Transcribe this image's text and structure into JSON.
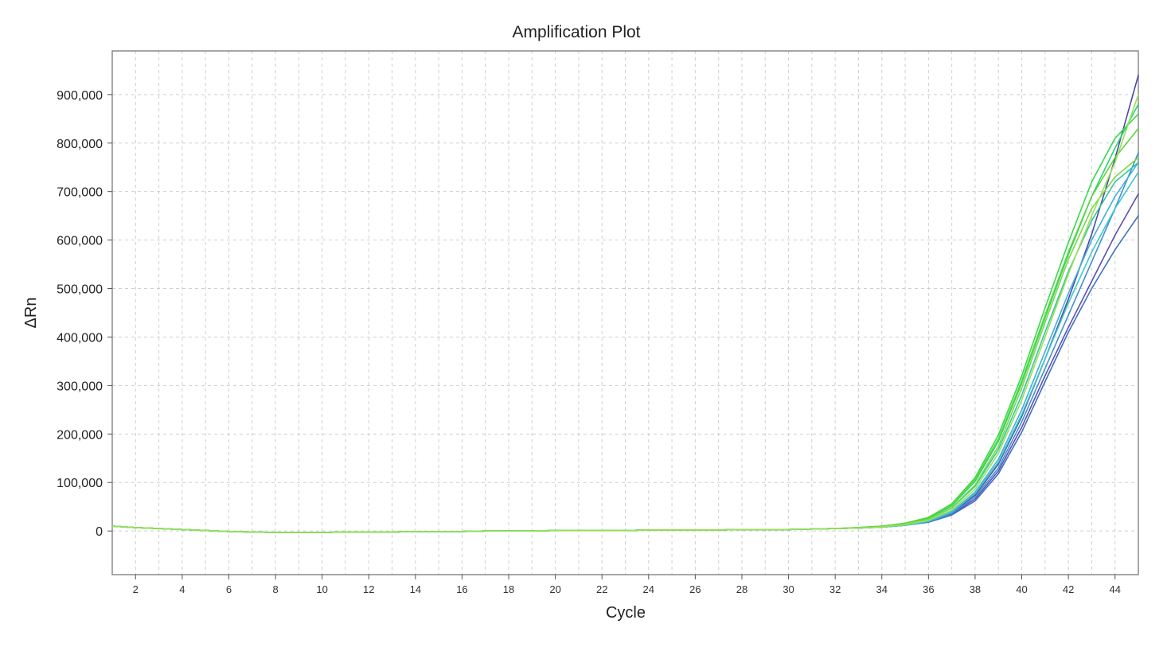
{
  "chart_data": {
    "type": "line",
    "title": "Amplification Plot",
    "xlabel": "Cycle",
    "ylabel": "ΔRn",
    "xlim": [
      1,
      45
    ],
    "ylim": [
      -90000,
      990000
    ],
    "x_ticks": [
      2,
      4,
      6,
      8,
      10,
      12,
      14,
      16,
      18,
      20,
      22,
      24,
      26,
      28,
      30,
      32,
      34,
      36,
      38,
      40,
      42,
      44
    ],
    "x_tick_labels": [
      "2",
      "4",
      "6",
      "8",
      "10",
      "12",
      "14",
      "16",
      "18",
      "20",
      "22",
      "24",
      "26",
      "28",
      "30",
      "32",
      "34",
      "36",
      "38",
      "40",
      "42",
      "44"
    ],
    "y_ticks": [
      0,
      100000,
      200000,
      300000,
      400000,
      500000,
      600000,
      700000,
      800000,
      900000
    ],
    "y_tick_labels": [
      "0",
      "100,000",
      "200,000",
      "300,000",
      "400,000",
      "500,000",
      "600,000",
      "700,000",
      "800,000",
      "900,000"
    ],
    "grid": true,
    "legend": "none",
    "x": [
      1,
      2,
      3,
      4,
      5,
      6,
      7,
      8,
      9,
      10,
      11,
      12,
      13,
      14,
      15,
      16,
      17,
      18,
      19,
      20,
      21,
      22,
      23,
      24,
      25,
      26,
      27,
      28,
      29,
      30,
      31,
      32,
      33,
      34,
      35,
      36,
      37,
      38,
      39,
      40,
      41,
      42,
      43,
      44,
      45
    ],
    "series": [
      {
        "color": "#4a4aa8",
        "values": [
          10000,
          7000,
          5000,
          3000,
          1000,
          -1000,
          -2000,
          -3000,
          -3000,
          -3000,
          -2000,
          -2000,
          -2000,
          -1000,
          -1000,
          -1000,
          0,
          0,
          0,
          1000,
          1000,
          1000,
          1000,
          2000,
          2000,
          2000,
          2000,
          3000,
          3000,
          3000,
          4000,
          5000,
          6000,
          8000,
          12000,
          20000,
          38000,
          74000,
          138000,
          236000,
          355000,
          478000,
          612000,
          768000,
          940000
        ]
      },
      {
        "color": "#5a50b0",
        "values": [
          10000,
          7000,
          5000,
          3000,
          1000,
          -1000,
          -2000,
          -3000,
          -3000,
          -3000,
          -2000,
          -2000,
          -2000,
          -1000,
          -1000,
          -1000,
          0,
          0,
          0,
          1000,
          1000,
          1000,
          1000,
          2000,
          2000,
          2000,
          2000,
          3000,
          3000,
          3000,
          4000,
          5000,
          6000,
          8000,
          12000,
          19000,
          35000,
          66000,
          124000,
          214000,
          320000,
          420000,
          515000,
          610000,
          695000
        ]
      },
      {
        "color": "#3f6fc0",
        "values": [
          10000,
          7000,
          5000,
          3000,
          1000,
          -1000,
          -2000,
          -3000,
          -3000,
          -3000,
          -2000,
          -2000,
          -2000,
          -1000,
          -1000,
          -1000,
          0,
          0,
          0,
          1000,
          1000,
          1000,
          1000,
          2000,
          2000,
          2000,
          2000,
          3000,
          3000,
          3000,
          4000,
          5000,
          6000,
          8000,
          12000,
          18000,
          33000,
          62000,
          118000,
          204000,
          308000,
          410000,
          500000,
          580000,
          650000
        ]
      },
      {
        "color": "#4590d0",
        "values": [
          10000,
          7000,
          5000,
          3000,
          1000,
          -1000,
          -2000,
          -3000,
          -3000,
          -3000,
          -2000,
          -2000,
          -2000,
          -1000,
          -1000,
          -1000,
          0,
          0,
          0,
          1000,
          1000,
          1000,
          1000,
          2000,
          2000,
          2000,
          2000,
          3000,
          3000,
          3000,
          4000,
          5000,
          6000,
          8000,
          12000,
          19000,
          36000,
          70000,
          130000,
          225000,
          335000,
          445000,
          555000,
          665000,
          780000
        ]
      },
      {
        "color": "#40b0d8",
        "values": [
          10000,
          7000,
          5000,
          3000,
          1000,
          -1000,
          -2000,
          -3000,
          -3000,
          -3000,
          -2000,
          -2000,
          -2000,
          -1000,
          -1000,
          -1000,
          0,
          0,
          0,
          1000,
          1000,
          1000,
          1000,
          2000,
          2000,
          2000,
          2000,
          3000,
          3000,
          3000,
          4000,
          5000,
          6000,
          8000,
          12000,
          20000,
          40000,
          80000,
          148000,
          250000,
          370000,
          490000,
          600000,
          690000,
          760000
        ]
      },
      {
        "color": "#3cc8c8",
        "values": [
          10000,
          7000,
          5000,
          3000,
          1000,
          -1000,
          -2000,
          -3000,
          -3000,
          -3000,
          -2000,
          -2000,
          -2000,
          -1000,
          -1000,
          -1000,
          0,
          0,
          0,
          1000,
          1000,
          1000,
          1000,
          2000,
          2000,
          2000,
          2000,
          3000,
          3000,
          3000,
          4000,
          5000,
          6000,
          8000,
          12000,
          20000,
          39000,
          77000,
          142000,
          240000,
          355000,
          470000,
          575000,
          665000,
          740000
        ]
      },
      {
        "color": "#34c79a",
        "values": [
          10000,
          7000,
          5000,
          3000,
          1000,
          -1000,
          -2000,
          -3000,
          -3000,
          -3000,
          -2000,
          -2000,
          -2000,
          -1000,
          -1000,
          -1000,
          0,
          0,
          0,
          1000,
          1000,
          1000,
          1000,
          2000,
          2000,
          2000,
          2000,
          3000,
          3000,
          3000,
          4000,
          5000,
          6000,
          9000,
          14000,
          24000,
          47000,
          92000,
          168000,
          280000,
          410000,
          535000,
          640000,
          720000,
          760000
        ]
      },
      {
        "color": "#2fd070",
        "values": [
          10000,
          7000,
          5000,
          3000,
          1000,
          -1000,
          -2000,
          -3000,
          -3000,
          -3000,
          -2000,
          -2000,
          -2000,
          -1000,
          -1000,
          -1000,
          0,
          0,
          0,
          1000,
          1000,
          1000,
          1000,
          2000,
          2000,
          2000,
          2000,
          3000,
          3000,
          3000,
          4000,
          5000,
          7000,
          10000,
          15000,
          26000,
          52000,
          102000,
          185000,
          305000,
          440000,
          570000,
          690000,
          790000,
          880000
        ]
      },
      {
        "color": "#38d84c",
        "values": [
          10000,
          7000,
          5000,
          3000,
          1000,
          -1000,
          -2000,
          -3000,
          -3000,
          -3000,
          -2000,
          -2000,
          -2000,
          -1000,
          -1000,
          -1000,
          0,
          0,
          0,
          1000,
          1000,
          1000,
          1000,
          2000,
          2000,
          2000,
          2000,
          3000,
          3000,
          3000,
          4000,
          5000,
          7000,
          10000,
          16000,
          28000,
          56000,
          110000,
          198000,
          320000,
          460000,
          595000,
          720000,
          810000,
          860000
        ]
      },
      {
        "color": "#5ad83a",
        "values": [
          10000,
          7000,
          5000,
          3000,
          1000,
          -1000,
          -2000,
          -3000,
          -3000,
          -3000,
          -2000,
          -2000,
          -2000,
          -1000,
          -1000,
          -1000,
          0,
          0,
          0,
          1000,
          1000,
          1000,
          1000,
          2000,
          2000,
          2000,
          2000,
          3000,
          3000,
          3000,
          4000,
          5000,
          7000,
          10000,
          16000,
          28000,
          55000,
          106000,
          190000,
          310000,
          445000,
          575000,
          690000,
          770000,
          830000
        ]
      },
      {
        "color": "#7ad84a",
        "values": [
          10000,
          7000,
          5000,
          3000,
          1000,
          -1000,
          -2000,
          -3000,
          -3000,
          -3000,
          -2000,
          -2000,
          -2000,
          -1000,
          -1000,
          -1000,
          0,
          0,
          0,
          1000,
          1000,
          1000,
          1000,
          2000,
          2000,
          2000,
          2000,
          3000,
          3000,
          3000,
          4000,
          5000,
          6000,
          9000,
          14000,
          24000,
          48000,
          95000,
          175000,
          295000,
          430000,
          560000,
          665000,
          730000,
          770000
        ]
      },
      {
        "color": "#9adf5a",
        "values": [
          10000,
          7000,
          5000,
          3000,
          1000,
          -1000,
          -2000,
          -3000,
          -3000,
          -3000,
          -2000,
          -2000,
          -2000,
          -1000,
          -1000,
          -1000,
          0,
          0,
          0,
          1000,
          1000,
          1000,
          1000,
          2000,
          2000,
          2000,
          2000,
          3000,
          3000,
          3000,
          4000,
          5000,
          6000,
          8000,
          13000,
          22000,
          43000,
          86000,
          160000,
          270000,
          400000,
          530000,
          650000,
          760000,
          900000
        ]
      }
    ]
  }
}
